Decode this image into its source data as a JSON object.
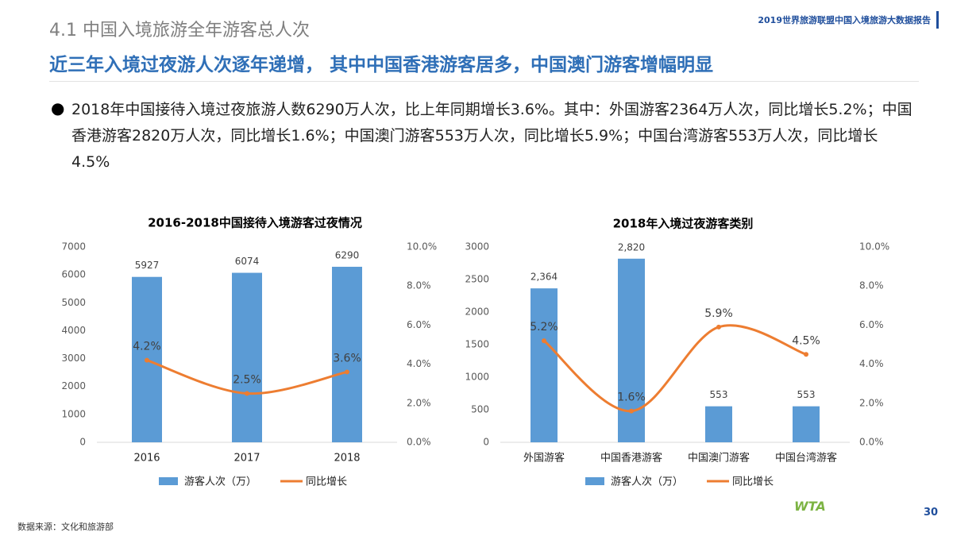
{
  "header": {
    "section": "4.1 中国入境旅游全年游客总人次",
    "report_title": "2019世界旅游联盟中国入境旅游大数据报告",
    "headline": "近三年入境过夜游人次逐年递增， 其中中国香港游客居多，中国澳门游客增幅明显"
  },
  "bullet": "2018年中国接待入境过夜旅游人数6290万人次，比上年同期增长3.6%。其中：外国游客2364万人次，同比增长5.2%；中国香港游客2820万人次，同比增长1.6%；中国澳门游客553万人次，同比增长5.9%；中国台湾游客553万人次，同比增长4.5%",
  "chart_data": [
    {
      "type": "bar",
      "title": "2016-2018中国接待入境游客过夜情况",
      "smooth": true,
      "categories": [
        "2016",
        "2017",
        "2018"
      ],
      "series": [
        {
          "name": "游客人次（万）",
          "type": "bar",
          "color": "#5b9bd5",
          "values": [
            5927,
            6074,
            6290
          ]
        },
        {
          "name": "同比增长",
          "type": "line",
          "axis": "y2",
          "color": "#ed7d31",
          "values": [
            4.2,
            2.5,
            3.6
          ],
          "value_labels": [
            "4.2%",
            "2.5%",
            "3.6%"
          ]
        }
      ],
      "ylim": [
        0,
        7000
      ],
      "yticks": [
        0,
        1000,
        2000,
        3000,
        4000,
        5000,
        6000,
        7000
      ],
      "y2lim": [
        0,
        10
      ],
      "y2ticks": [
        {
          "value": 0,
          "label": "0.0%"
        },
        {
          "value": 2,
          "label": "2.0%"
        },
        {
          "value": 4,
          "label": "4.0%"
        },
        {
          "value": 6,
          "label": "6.0%"
        },
        {
          "value": 8,
          "label": "8.0%"
        },
        {
          "value": 10,
          "label": "10.0%"
        }
      ]
    },
    {
      "type": "bar",
      "title": "2018年入境过夜游客类别",
      "smooth": true,
      "categories": [
        "外国游客",
        "中国香港游客",
        "中国澳门游客",
        "中国台湾游客"
      ],
      "series": [
        {
          "name": "游客人次（万）",
          "type": "bar",
          "color": "#5b9bd5",
          "values": [
            2364,
            2820,
            553,
            553
          ],
          "value_labels": [
            "2,364",
            "2,820",
            "553",
            "553"
          ]
        },
        {
          "name": "同比增长",
          "type": "line",
          "axis": "y2",
          "color": "#ed7d31",
          "values": [
            5.2,
            1.6,
            5.9,
            4.5
          ],
          "value_labels": [
            "5.2%",
            "1.6%",
            "5.9%",
            "4.5%"
          ]
        }
      ],
      "ylim": [
        0,
        3000
      ],
      "yticks": [
        0,
        500,
        1000,
        1500,
        2000,
        2500,
        3000
      ],
      "y2lim": [
        0,
        10
      ],
      "y2ticks": [
        {
          "value": 0,
          "label": "0.0%"
        },
        {
          "value": 2,
          "label": "2.0%"
        },
        {
          "value": 4,
          "label": "4.0%"
        },
        {
          "value": 6,
          "label": "6.0%"
        },
        {
          "value": 8,
          "label": "8.0%"
        },
        {
          "value": 10,
          "label": "10.0%"
        }
      ]
    }
  ],
  "footer": {
    "source": "数据来源：文化和旅游部",
    "page": "30",
    "logo": "WTA"
  }
}
